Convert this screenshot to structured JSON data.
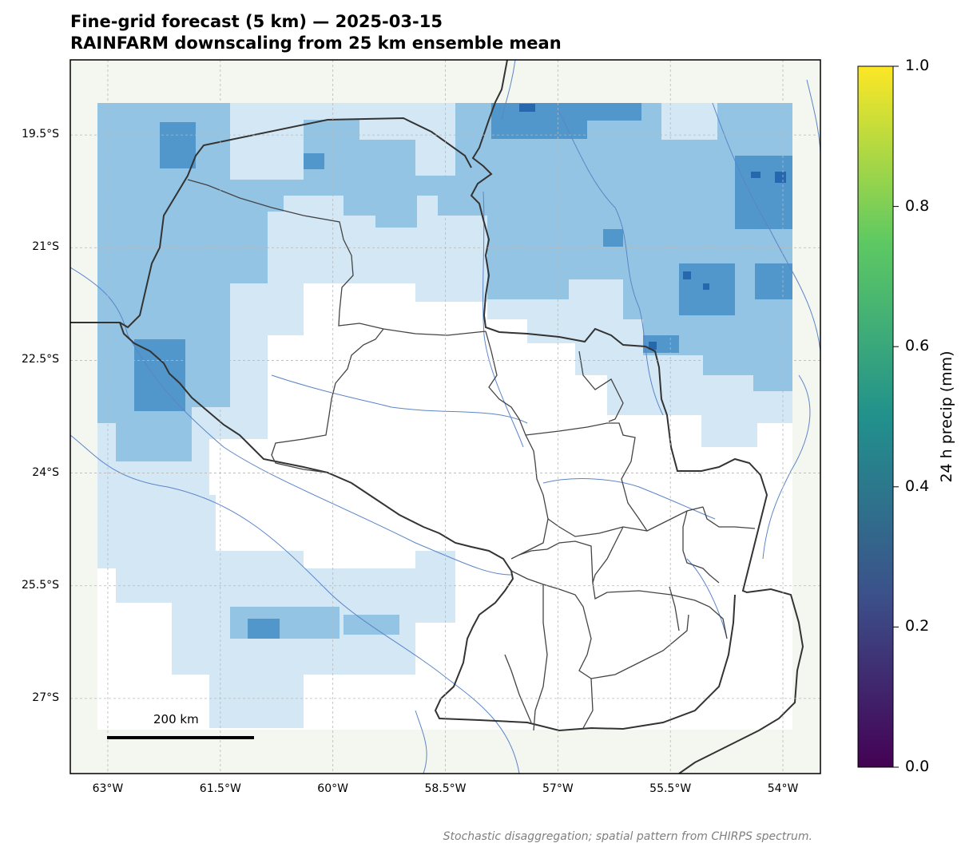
{
  "title": {
    "line1": "Fine-grid forecast (5 km) — 2025-03-15",
    "line2": "RAINFARM downscaling from 25 km ensemble mean"
  },
  "map": {
    "lon_range": [
      -63.5,
      -53.5
    ],
    "lat_range": [
      -28.0,
      -18.5
    ],
    "lat_ticks": [
      {
        "value": -19.5,
        "label": "19.5°S"
      },
      {
        "value": -21.0,
        "label": "21°S"
      },
      {
        "value": -22.5,
        "label": "22.5°S"
      },
      {
        "value": -24.0,
        "label": "24°S"
      },
      {
        "value": -25.5,
        "label": "25.5°S"
      },
      {
        "value": -27.0,
        "label": "27°S"
      }
    ],
    "lon_ticks": [
      {
        "value": -63.0,
        "label": "63°W"
      },
      {
        "value": -61.5,
        "label": "61.5°W"
      },
      {
        "value": -60.0,
        "label": "60°W"
      },
      {
        "value": -58.5,
        "label": "58.5°W"
      },
      {
        "value": -57.0,
        "label": "57°W"
      },
      {
        "value": -55.5,
        "label": "55.5°W"
      },
      {
        "value": -54.0,
        "label": "54°W"
      }
    ],
    "gridlines": true,
    "scalebar_label": "200 km",
    "land_color": "#f4f6f0",
    "river_color": "#5b85c8",
    "border_color": "#333333",
    "precip_blues": [
      "#d4e7f5",
      "#93c4e3",
      "#5197cb",
      "#2767ad"
    ]
  },
  "colorbar": {
    "label": "24 h precip (mm)",
    "ticks": [
      "1.0",
      "0.8",
      "0.6",
      "0.4",
      "0.2",
      "0.0"
    ],
    "colors": [
      "#440154",
      "#3b528b",
      "#21918c",
      "#5ec962",
      "#fde725"
    ]
  },
  "footnote": "Stochastic disaggregation; spatial pattern from CHIRPS spectrum."
}
